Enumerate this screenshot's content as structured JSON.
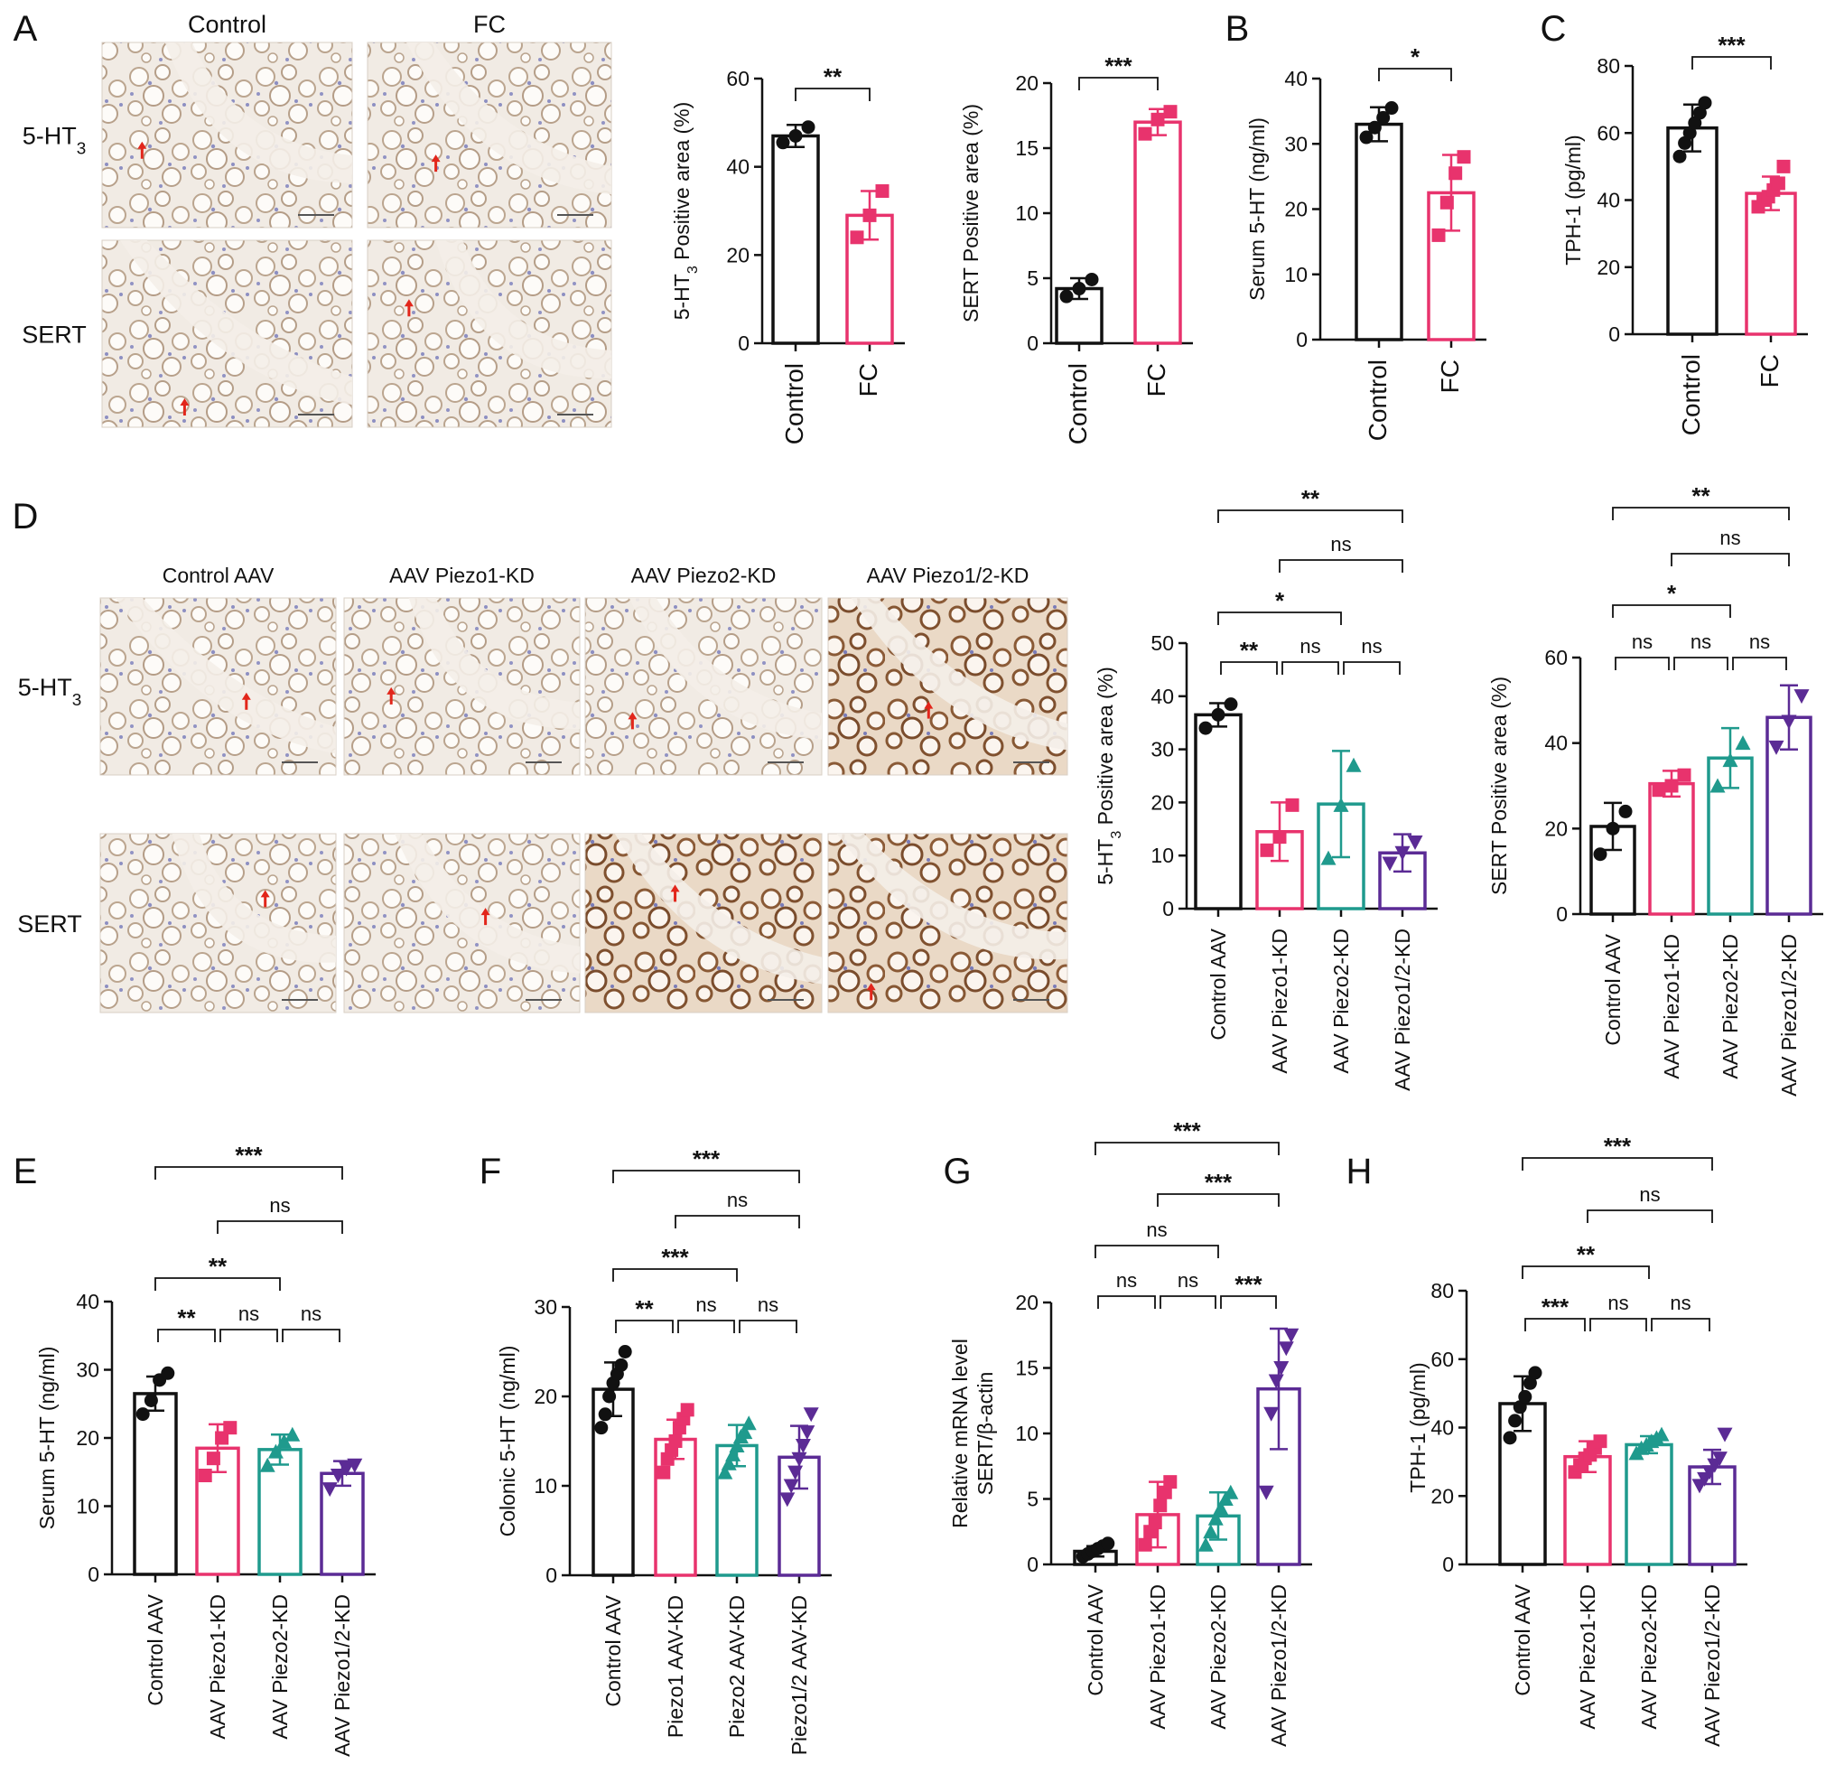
{
  "colors": {
    "control": "#111111",
    "fc": "#e8336d",
    "piezo1": "#e8336d",
    "piezo2": "#1f9a8d",
    "piezo12": "#5b2b95",
    "arrow": "#e2261b"
  },
  "panel_labels": [
    "A",
    "B",
    "C",
    "D",
    "E",
    "F",
    "G",
    "H"
  ],
  "micrographs": {
    "A": {
      "columns": [
        "Control",
        "FC"
      ],
      "rows": [
        {
          "label": "5-HT",
          "sub": "3"
        },
        {
          "label": "SERT",
          "sub": ""
        }
      ]
    },
    "D": {
      "columns": [
        "Control AAV",
        "AAV Piezo1-KD",
        "AAV Piezo2-KD",
        "AAV Piezo1/2-KD"
      ],
      "rows": [
        {
          "label": "5-HT",
          "sub": "3"
        },
        {
          "label": "SERT",
          "sub": ""
        }
      ]
    }
  },
  "chart_data": [
    {
      "id": "A1",
      "type": "bar",
      "categories": [
        "Control",
        "FC"
      ],
      "values": [
        47,
        29
      ],
      "errors": [
        2.5,
        5.5
      ],
      "points": [
        [
          45.5,
          47,
          49
        ],
        [
          24,
          29,
          34.5
        ]
      ],
      "ylabel": "5-HT",
      "ylabel_sub": "3",
      "ylabel_rest": " Positive area (%)",
      "ylim": [
        0,
        60
      ],
      "yticks": [
        0,
        20,
        40,
        60
      ],
      "markers": [
        "circle",
        "square"
      ],
      "comparisons": [
        {
          "from": 0,
          "to": 1,
          "label": "**"
        }
      ]
    },
    {
      "id": "A2",
      "type": "bar",
      "categories": [
        "Control",
        "FC"
      ],
      "values": [
        4.2,
        17
      ],
      "errors": [
        0.8,
        1.0
      ],
      "points": [
        [
          3.6,
          4.2,
          4.9
        ],
        [
          16.1,
          17.2,
          17.8
        ]
      ],
      "ylabel": "SERT Positive area (%)",
      "ylim": [
        0,
        20
      ],
      "yticks": [
        0,
        5,
        10,
        15,
        20
      ],
      "markers": [
        "circle",
        "square"
      ],
      "comparisons": [
        {
          "from": 0,
          "to": 1,
          "label": "***"
        }
      ]
    },
    {
      "id": "B",
      "type": "bar",
      "categories": [
        "Control",
        "FC"
      ],
      "values": [
        33,
        22.5
      ],
      "errors": [
        2.6,
        5.8
      ],
      "points": [
        [
          31,
          32.5,
          34,
          35.5
        ],
        [
          16,
          21,
          25.5,
          28
        ]
      ],
      "ylabel": "Serum 5-HT (ng/ml)",
      "ylim": [
        0,
        40
      ],
      "yticks": [
        0,
        10,
        20,
        30,
        40
      ],
      "markers": [
        "circle",
        "square"
      ],
      "comparisons": [
        {
          "from": 0,
          "to": 1,
          "label": "*"
        }
      ]
    },
    {
      "id": "C",
      "type": "bar",
      "categories": [
        "Control",
        "FC"
      ],
      "values": [
        61.5,
        42
      ],
      "errors": [
        7,
        5
      ],
      "points": [
        [
          53,
          57,
          60,
          63,
          66,
          69
        ],
        [
          38,
          40,
          41,
          43,
          45,
          50
        ]
      ],
      "ylabel": "TPH-1 (pg/ml)",
      "ylim": [
        0,
        80
      ],
      "yticks": [
        0,
        20,
        40,
        60,
        80
      ],
      "markers": [
        "circle",
        "square"
      ],
      "comparisons": [
        {
          "from": 0,
          "to": 1,
          "label": "***"
        }
      ]
    },
    {
      "id": "D1",
      "type": "bar",
      "categories": [
        "Control AAV",
        "AAV Piezo1-KD",
        "AAV Piezo2-KD",
        "AAV Piezo1/2-KD"
      ],
      "values": [
        36.5,
        14.5,
        19.7,
        10.5
      ],
      "errors": [
        2.2,
        5.5,
        10,
        3.5
      ],
      "points": [
        [
          34,
          36.5,
          38.5
        ],
        [
          11,
          13.5,
          19.5
        ],
        [
          9.5,
          19.5,
          27
        ],
        [
          8.5,
          10.5,
          12.5
        ]
      ],
      "ylabel": "5-HT",
      "ylabel_sub": "3",
      "ylabel_rest": " Positive area (%)",
      "ylim": [
        0,
        50
      ],
      "yticks": [
        0,
        10,
        20,
        30,
        40,
        50
      ],
      "markers": [
        "circle",
        "square",
        "triangle",
        "invtriangle"
      ],
      "comparisons": [
        {
          "from": 0,
          "to": 1,
          "label": "**"
        },
        {
          "from": 1,
          "to": 2,
          "label": "ns"
        },
        {
          "from": 2,
          "to": 3,
          "label": "ns"
        },
        {
          "from": 0,
          "to": 2,
          "label": "*"
        },
        {
          "from": 1,
          "to": 3,
          "label": "ns"
        },
        {
          "from": 0,
          "to": 3,
          "label": "**"
        }
      ]
    },
    {
      "id": "D2",
      "type": "bar",
      "categories": [
        "Control AAV",
        "AAV Piezo1-KD",
        "AAV Piezo2-KD",
        "AAV Piezo1/2-KD"
      ],
      "values": [
        20.5,
        30.5,
        36.5,
        46
      ],
      "errors": [
        5.5,
        3,
        7,
        7.5
      ],
      "points": [
        [
          14,
          20,
          24
        ],
        [
          29,
          30,
          32.5
        ],
        [
          30,
          36,
          40
        ],
        [
          39,
          45,
          51
        ]
      ],
      "ylabel": "SERT Positive area (%)",
      "ylim": [
        0,
        60
      ],
      "yticks": [
        0,
        20,
        40,
        60
      ],
      "markers": [
        "circle",
        "square",
        "triangle",
        "invtriangle"
      ],
      "comparisons": [
        {
          "from": 0,
          "to": 1,
          "label": "ns"
        },
        {
          "from": 1,
          "to": 2,
          "label": "ns"
        },
        {
          "from": 2,
          "to": 3,
          "label": "ns"
        },
        {
          "from": 0,
          "to": 2,
          "label": "*"
        },
        {
          "from": 1,
          "to": 3,
          "label": "ns"
        },
        {
          "from": 0,
          "to": 3,
          "label": "**"
        }
      ]
    },
    {
      "id": "E",
      "type": "bar",
      "categories": [
        "Control AAV",
        "AAV Piezo1-KD",
        "AAV Piezo2-KD",
        "AAV Piezo1/2-KD"
      ],
      "values": [
        26.5,
        18.5,
        18.3,
        14.8
      ],
      "errors": [
        2.5,
        3.5,
        2.2,
        1.8
      ],
      "points": [
        [
          23.5,
          25.5,
          28.5,
          29.5
        ],
        [
          14.5,
          17,
          20,
          21.5
        ],
        [
          16,
          18,
          19.5,
          20.5
        ],
        [
          12.5,
          14.5,
          15.5,
          16
        ]
      ],
      "ylabel": "Serum 5-HT (ng/ml)",
      "ylim": [
        0,
        40
      ],
      "yticks": [
        0,
        10,
        20,
        30,
        40
      ],
      "markers": [
        "circle",
        "square",
        "triangle",
        "invtriangle"
      ],
      "comparisons": [
        {
          "from": 0,
          "to": 1,
          "label": "**"
        },
        {
          "from": 1,
          "to": 2,
          "label": "ns"
        },
        {
          "from": 2,
          "to": 3,
          "label": "ns"
        },
        {
          "from": 0,
          "to": 2,
          "label": "**"
        },
        {
          "from": 1,
          "to": 3,
          "label": "ns"
        },
        {
          "from": 0,
          "to": 3,
          "label": "***"
        }
      ]
    },
    {
      "id": "F",
      "type": "bar",
      "categories": [
        "Control AAV",
        "Piezo1 AAV-KD",
        "Piezo2 AAV-KD",
        "Piezo1/2 AAV-KD"
      ],
      "values": [
        20.8,
        15.2,
        14.5,
        13.2
      ],
      "errors": [
        3,
        2.2,
        2.3,
        3.5
      ],
      "points": [
        [
          16.5,
          18,
          20,
          21.5,
          22.5,
          23.5,
          25
        ],
        [
          11.5,
          13,
          14,
          15,
          16.5,
          17.5,
          18.5
        ],
        [
          11.5,
          12.5,
          13.5,
          14.5,
          15.5,
          16,
          17
        ],
        [
          8.5,
          10,
          11.5,
          13,
          14.5,
          16,
          18
        ]
      ],
      "ylabel": "Colonic 5-HT (ng/ml)",
      "ylim": [
        0,
        30
      ],
      "yticks": [
        0,
        10,
        20,
        30
      ],
      "markers": [
        "circle",
        "square",
        "triangle",
        "invtriangle"
      ],
      "comparisons": [
        {
          "from": 0,
          "to": 1,
          "label": "**"
        },
        {
          "from": 1,
          "to": 2,
          "label": "ns"
        },
        {
          "from": 2,
          "to": 3,
          "label": "ns"
        },
        {
          "from": 0,
          "to": 2,
          "label": "***"
        },
        {
          "from": 1,
          "to": 3,
          "label": "ns"
        },
        {
          "from": 0,
          "to": 3,
          "label": "***"
        }
      ]
    },
    {
      "id": "G",
      "type": "bar",
      "categories": [
        "Control AAV",
        "AAV Piezo1-KD",
        "AAV Piezo2-KD",
        "AAV Piezo1/2-KD"
      ],
      "values": [
        1.0,
        3.8,
        3.7,
        13.4
      ],
      "errors": [
        0.4,
        2.5,
        1.8,
        4.6
      ],
      "points": [
        [
          0.6,
          0.8,
          1.0,
          1.2,
          1.4,
          1.6
        ],
        [
          1.5,
          2.5,
          3.2,
          4.5,
          5.5,
          6.3
        ],
        [
          1.5,
          2.5,
          3.5,
          4.3,
          5.0,
          5.5
        ],
        [
          5.5,
          11.5,
          14,
          15,
          16.5,
          17.5
        ]
      ],
      "ylabel": "Relative mRNA level",
      "ylabel2": "SERT/β-actin",
      "ylim": [
        0,
        20
      ],
      "yticks": [
        0,
        5,
        10,
        15,
        20
      ],
      "markers": [
        "circle",
        "square",
        "triangle",
        "invtriangle"
      ],
      "comparisons": [
        {
          "from": 0,
          "to": 1,
          "label": "ns"
        },
        {
          "from": 1,
          "to": 2,
          "label": "ns"
        },
        {
          "from": 2,
          "to": 3,
          "label": "***"
        },
        {
          "from": 0,
          "to": 2,
          "label": "ns"
        },
        {
          "from": 1,
          "to": 3,
          "label": "***"
        },
        {
          "from": 0,
          "to": 3,
          "label": "***"
        }
      ]
    },
    {
      "id": "H",
      "type": "bar",
      "categories": [
        "Control AAV",
        "AAV Piezo1-KD",
        "AAV Piezo2-KD",
        "AAV Piezo1/2-KD"
      ],
      "values": [
        47,
        31.5,
        35,
        28.5
      ],
      "errors": [
        8,
        4.5,
        2.5,
        5
      ],
      "points": [
        [
          37,
          42,
          46,
          49,
          53,
          56
        ],
        [
          27,
          29,
          31,
          32,
          34,
          36
        ],
        [
          32.5,
          34,
          35,
          36,
          37,
          38
        ],
        [
          23,
          25,
          27,
          29,
          31,
          38
        ]
      ],
      "ylabel": "TPH-1 (pg/ml)",
      "ylim": [
        0,
        80
      ],
      "yticks": [
        0,
        20,
        40,
        60,
        80
      ],
      "markers": [
        "circle",
        "square",
        "triangle",
        "invtriangle"
      ],
      "comparisons": [
        {
          "from": 0,
          "to": 1,
          "label": "***"
        },
        {
          "from": 1,
          "to": 2,
          "label": "ns"
        },
        {
          "from": 2,
          "to": 3,
          "label": "ns"
        },
        {
          "from": 0,
          "to": 2,
          "label": "**"
        },
        {
          "from": 1,
          "to": 3,
          "label": "ns"
        },
        {
          "from": 0,
          "to": 3,
          "label": "***"
        }
      ]
    }
  ]
}
